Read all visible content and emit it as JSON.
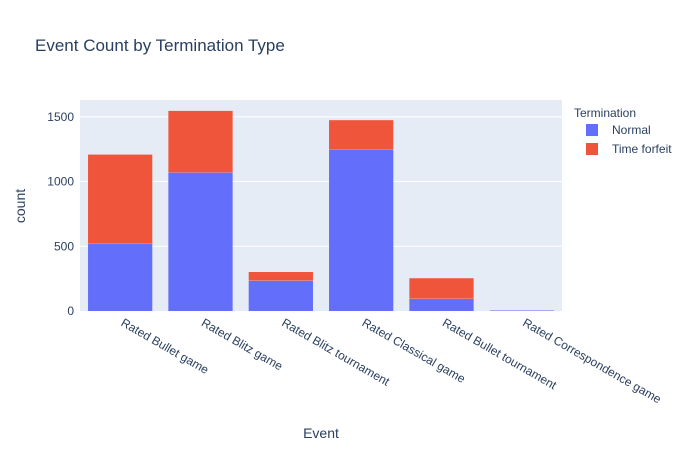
{
  "chart_data": {
    "type": "bar",
    "stacked": true,
    "title": "Event Count by Termination Type",
    "xlabel": "Event",
    "ylabel": "count",
    "categories": [
      "Rated Bullet game",
      "Rated Blitz game",
      "Rated Blitz tournament",
      "Rated Classical game",
      "Rated Bullet tournament",
      "Rated Correspondence game"
    ],
    "series": [
      {
        "name": "Normal",
        "color": "#636efa",
        "values": [
          525,
          1070,
          235,
          1248,
          95,
          6
        ]
      },
      {
        "name": "Time forfeit",
        "color": "#ef553b",
        "values": [
          685,
          478,
          68,
          228,
          160,
          0
        ]
      }
    ],
    "ylim": [
      0,
      1630
    ],
    "yticks": [
      0,
      500,
      1000,
      1500
    ],
    "grid": true,
    "legend": {
      "title": "Termination",
      "placement": "top-right"
    },
    "plot_background": "#e5ecf6"
  }
}
